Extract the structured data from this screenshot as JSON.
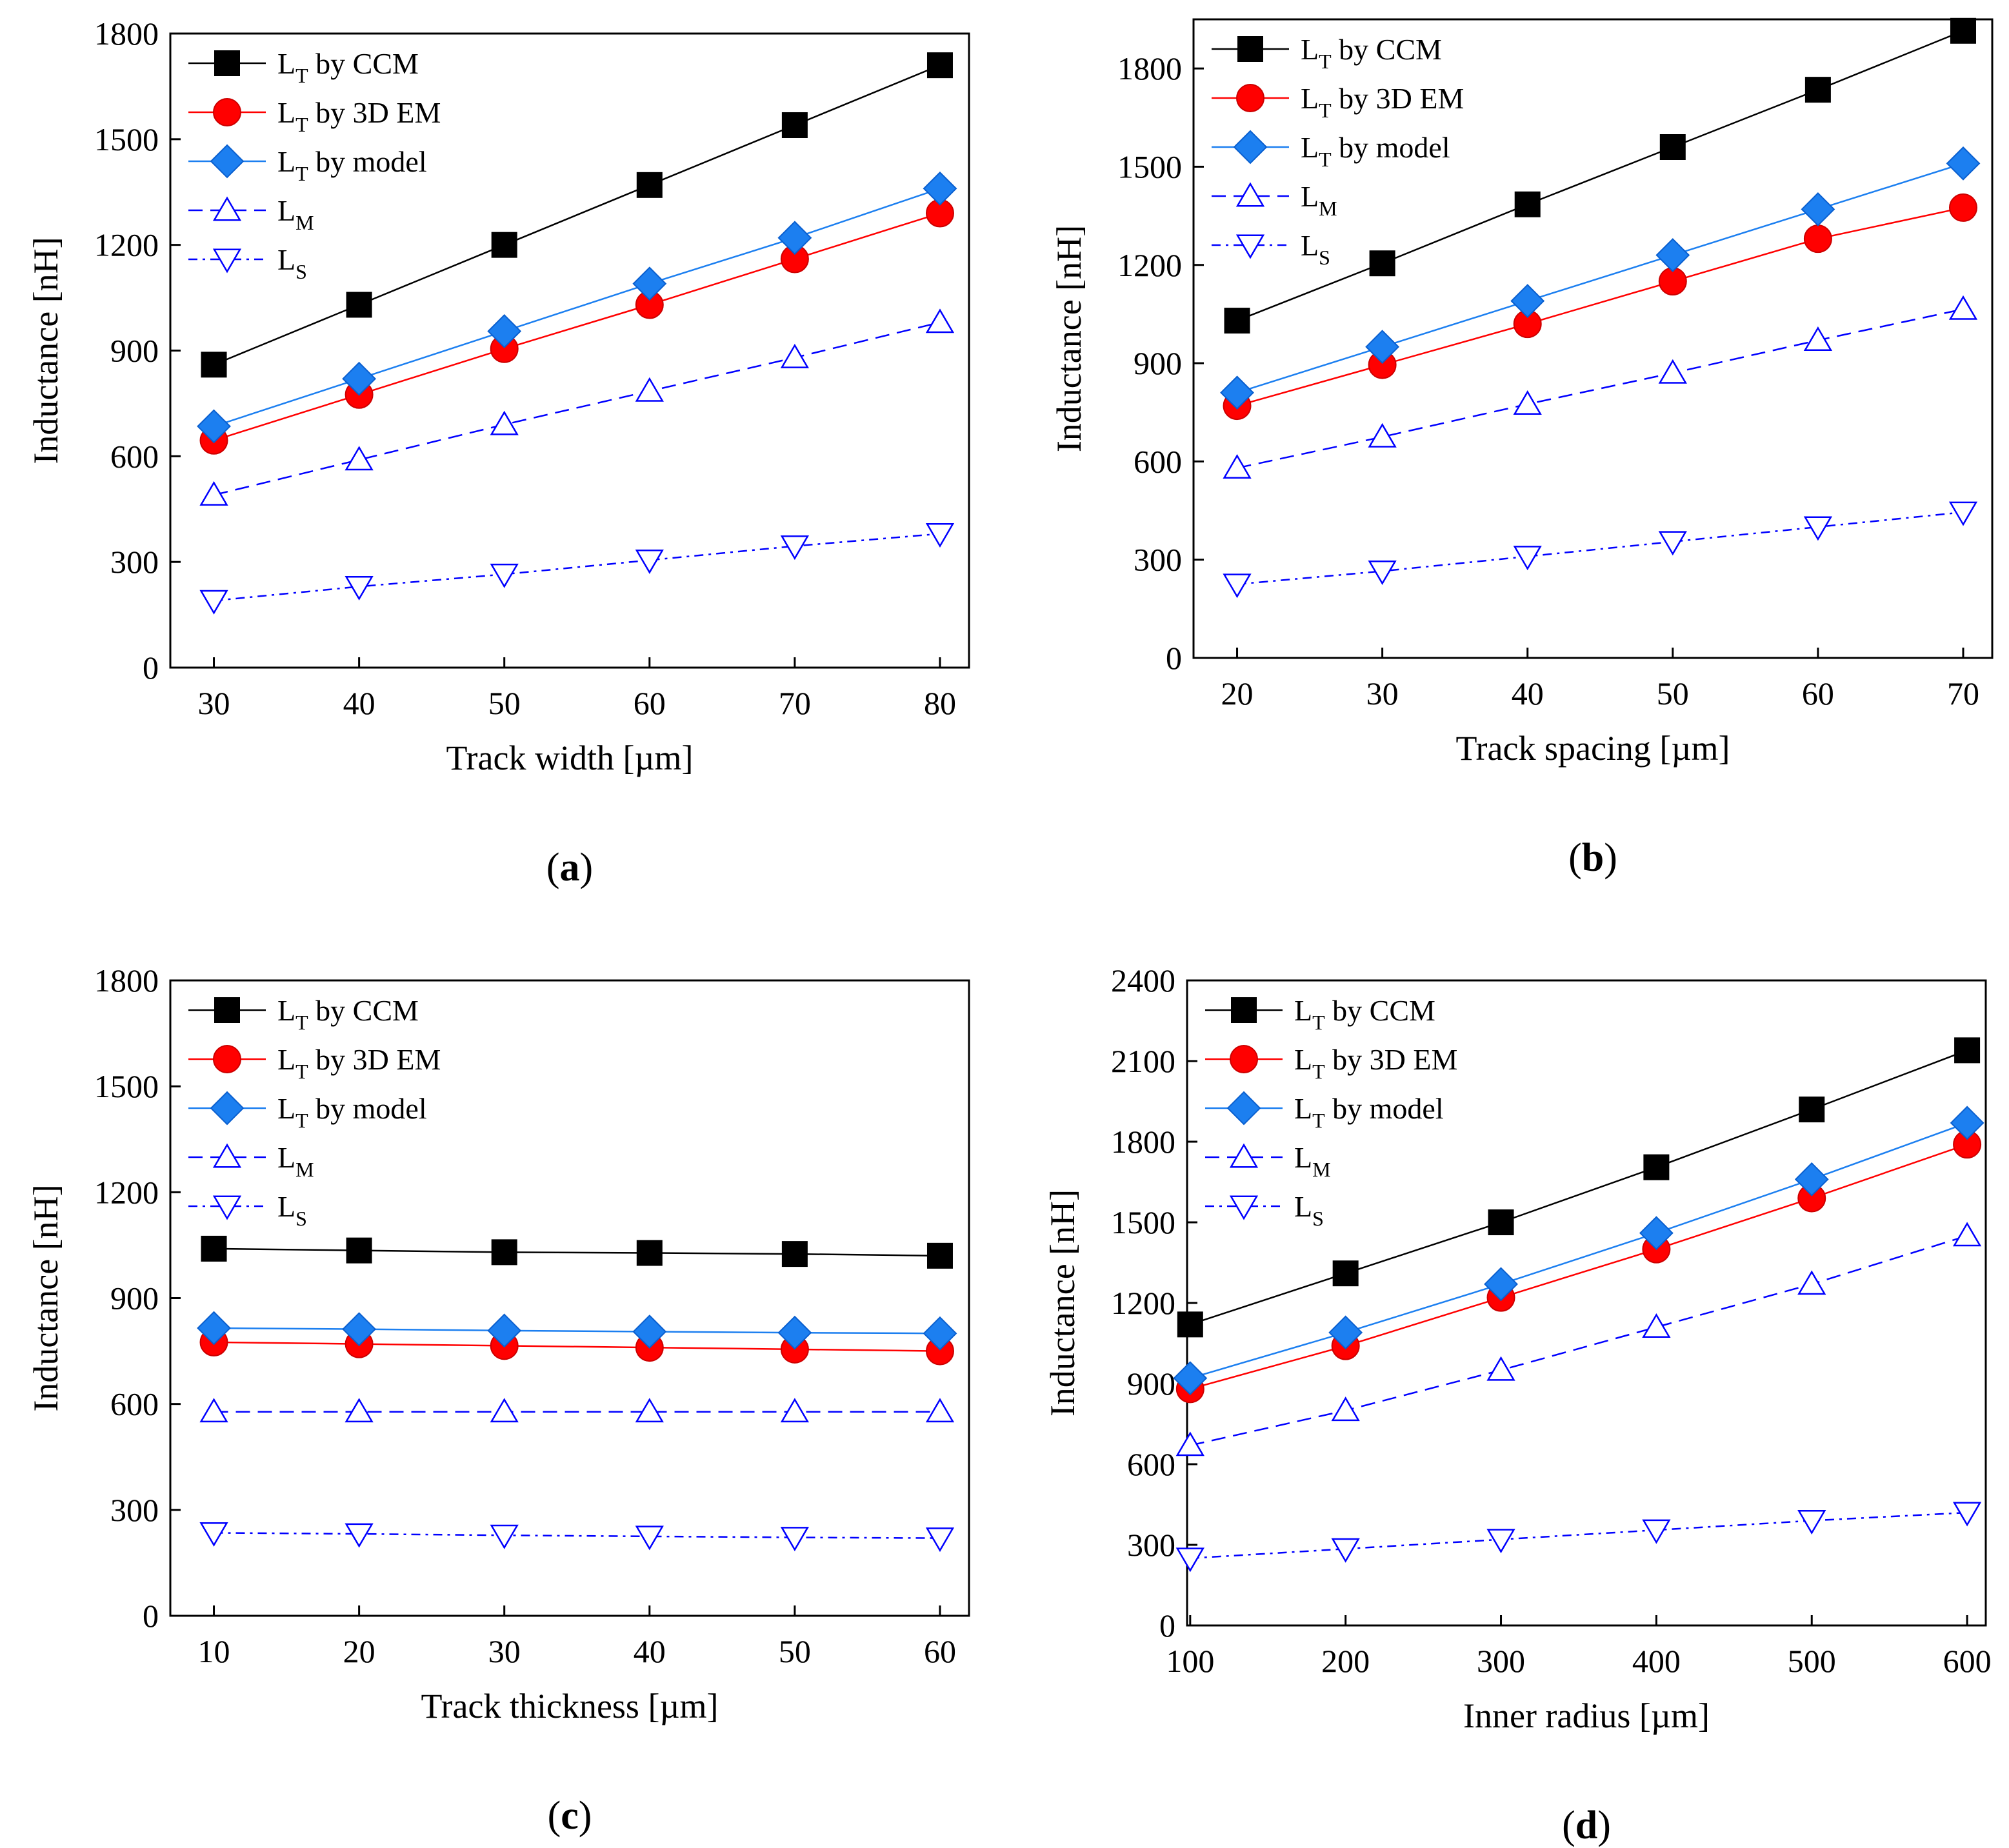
{
  "legend_common": {
    "sub_T": "T",
    "sub_M": "M",
    "sub_S": "S"
  },
  "chart_data": [
    {
      "type": "line",
      "caption": "(a)",
      "caption_letter": "a",
      "xlabel": "Track width [µm]",
      "ylabel": "Inductance [nH]",
      "x": [
        30,
        40,
        50,
        60,
        70,
        80
      ],
      "xlim": [
        27,
        82
      ],
      "ylim": [
        0,
        1800
      ],
      "xticks": [
        30,
        40,
        50,
        60,
        70,
        80
      ],
      "yticks": [
        0,
        300,
        600,
        900,
        1200,
        1500,
        1800
      ],
      "legend_position": "top-left",
      "grid": false,
      "series": [
        {
          "name": "LT by CCM",
          "label_main": "L",
          "label_sub": "T",
          "label_rest": " by CCM",
          "color": "#000000",
          "marker": "square",
          "dash": "solid",
          "values": [
            860,
            1030,
            1200,
            1370,
            1540,
            1710
          ]
        },
        {
          "name": "LT by 3D EM",
          "label_main": "L",
          "label_sub": "T",
          "label_rest": " by 3D EM",
          "color": "#ff0000",
          "marker": "circle",
          "dash": "solid",
          "values": [
            645,
            775,
            905,
            1030,
            1160,
            1290
          ]
        },
        {
          "name": "LT by model",
          "label_main": "L",
          "label_sub": "T",
          "label_rest": " by model",
          "color": "#1c7ff0",
          "marker": "diamond",
          "dash": "solid",
          "values": [
            685,
            820,
            955,
            1090,
            1220,
            1360
          ]
        },
        {
          "name": "LM",
          "label_main": "L",
          "label_sub": "M",
          "label_rest": "",
          "color": "#0000ff",
          "marker": "triangle-up",
          "dash": "dashed",
          "values": [
            490,
            590,
            690,
            785,
            880,
            980
          ]
        },
        {
          "name": "LS",
          "label_main": "L",
          "label_sub": "S",
          "label_rest": "",
          "color": "#0000ff",
          "marker": "triangle-down",
          "dash": "dotdash",
          "values": [
            190,
            230,
            265,
            305,
            345,
            380
          ]
        }
      ]
    },
    {
      "type": "line",
      "caption": "(b)",
      "caption_letter": "b",
      "xlabel": "Track spacing [µm]",
      "ylabel": "Inductance [nH]",
      "x": [
        20,
        30,
        40,
        50,
        60,
        70
      ],
      "xlim": [
        17,
        72
      ],
      "ylim": [
        0,
        1950
      ],
      "xticks": [
        20,
        30,
        40,
        50,
        60,
        70
      ],
      "yticks": [
        0,
        300,
        600,
        900,
        1200,
        1500,
        1800
      ],
      "legend_position": "top-left",
      "grid": false,
      "series": [
        {
          "name": "LT by CCM",
          "label_main": "L",
          "label_sub": "T",
          "label_rest": " by CCM",
          "color": "#000000",
          "marker": "square",
          "dash": "solid",
          "values": [
            1030,
            1205,
            1385,
            1560,
            1735,
            1915
          ]
        },
        {
          "name": "LT by 3D EM",
          "label_main": "L",
          "label_sub": "T",
          "label_rest": " by 3D EM",
          "color": "#ff0000",
          "marker": "circle",
          "dash": "solid",
          "values": [
            770,
            895,
            1020,
            1150,
            1280,
            1375
          ]
        },
        {
          "name": "LT by model",
          "label_main": "L",
          "label_sub": "T",
          "label_rest": " by model",
          "color": "#1c7ff0",
          "marker": "diamond",
          "dash": "solid",
          "values": [
            810,
            950,
            1090,
            1230,
            1370,
            1510
          ]
        },
        {
          "name": "LM",
          "label_main": "L",
          "label_sub": "M",
          "label_rest": "",
          "color": "#0000ff",
          "marker": "triangle-up",
          "dash": "dashed",
          "values": [
            580,
            675,
            775,
            870,
            970,
            1065
          ]
        },
        {
          "name": "LS",
          "label_main": "L",
          "label_sub": "S",
          "label_rest": "",
          "color": "#0000ff",
          "marker": "triangle-down",
          "dash": "dotdash",
          "values": [
            225,
            265,
            310,
            355,
            400,
            445
          ]
        }
      ]
    },
    {
      "type": "line",
      "caption": "(c)",
      "caption_letter": "c",
      "xlabel": "Track thickness [µm]",
      "ylabel": "Inductance [nH]",
      "x": [
        10,
        20,
        30,
        40,
        50,
        60
      ],
      "xlim": [
        7,
        62
      ],
      "ylim": [
        0,
        1800
      ],
      "xticks": [
        10,
        20,
        30,
        40,
        50,
        60
      ],
      "yticks": [
        0,
        300,
        600,
        900,
        1200,
        1500,
        1800
      ],
      "legend_position": "top-left",
      "grid": false,
      "series": [
        {
          "name": "LT by CCM",
          "label_main": "L",
          "label_sub": "T",
          "label_rest": " by CCM",
          "color": "#000000",
          "marker": "square",
          "dash": "solid",
          "values": [
            1040,
            1035,
            1030,
            1028,
            1025,
            1020
          ]
        },
        {
          "name": "LT by 3D EM",
          "label_main": "L",
          "label_sub": "T",
          "label_rest": " by 3D EM",
          "color": "#ff0000",
          "marker": "circle",
          "dash": "solid",
          "values": [
            775,
            770,
            765,
            760,
            755,
            750
          ]
        },
        {
          "name": "LT by model",
          "label_main": "L",
          "label_sub": "T",
          "label_rest": " by model",
          "color": "#1c7ff0",
          "marker": "diamond",
          "dash": "solid",
          "values": [
            815,
            812,
            808,
            805,
            802,
            800
          ]
        },
        {
          "name": "LM",
          "label_main": "L",
          "label_sub": "M",
          "label_rest": "",
          "color": "#0000ff",
          "marker": "triangle-up",
          "dash": "dashed",
          "values": [
            578,
            578,
            578,
            578,
            578,
            578
          ]
        },
        {
          "name": "LS",
          "label_main": "L",
          "label_sub": "S",
          "label_rest": "",
          "color": "#0000ff",
          "marker": "triangle-down",
          "dash": "dotdash",
          "values": [
            235,
            232,
            228,
            225,
            222,
            220
          ]
        }
      ]
    },
    {
      "type": "line",
      "caption": "(d)",
      "caption_letter": "d",
      "xlabel": "Inner radius [µm]",
      "ylabel": "Inductance [nH]",
      "x": [
        100,
        200,
        300,
        400,
        500,
        600
      ],
      "xlim": [
        98,
        612
      ],
      "ylim": [
        0,
        2400
      ],
      "xticks": [
        100,
        200,
        300,
        400,
        500,
        600
      ],
      "yticks": [
        0,
        300,
        600,
        900,
        1200,
        1500,
        1800,
        2100,
        2400
      ],
      "legend_position": "top-left",
      "grid": false,
      "series": [
        {
          "name": "LT by CCM",
          "label_main": "L",
          "label_sub": "T",
          "label_rest": " by CCM",
          "color": "#000000",
          "marker": "square",
          "dash": "solid",
          "values": [
            1120,
            1310,
            1500,
            1705,
            1920,
            2140
          ]
        },
        {
          "name": "LT by 3D EM",
          "label_main": "L",
          "label_sub": "T",
          "label_rest": " by 3D EM",
          "color": "#ff0000",
          "marker": "circle",
          "dash": "solid",
          "values": [
            880,
            1040,
            1220,
            1400,
            1590,
            1790
          ]
        },
        {
          "name": "LT by model",
          "label_main": "L",
          "label_sub": "T",
          "label_rest": " by model",
          "color": "#1c7ff0",
          "marker": "diamond",
          "dash": "solid",
          "values": [
            920,
            1090,
            1270,
            1460,
            1660,
            1870
          ]
        },
        {
          "name": "LM",
          "label_main": "L",
          "label_sub": "M",
          "label_rest": "",
          "color": "#0000ff",
          "marker": "triangle-up",
          "dash": "dashed",
          "values": [
            670,
            800,
            950,
            1110,
            1270,
            1450
          ]
        },
        {
          "name": "LS",
          "label_main": "L",
          "label_sub": "S",
          "label_rest": "",
          "color": "#0000ff",
          "marker": "triangle-down",
          "dash": "dotdash",
          "values": [
            250,
            285,
            320,
            355,
            390,
            420
          ]
        }
      ]
    }
  ]
}
